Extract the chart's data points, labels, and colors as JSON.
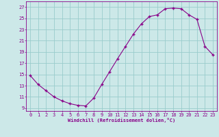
{
  "x": [
    0,
    1,
    2,
    3,
    4,
    5,
    6,
    7,
    8,
    9,
    10,
    11,
    12,
    13,
    14,
    15,
    16,
    17,
    18,
    19,
    20,
    21,
    22,
    23
  ],
  "y": [
    14.8,
    13.2,
    12.1,
    11.0,
    10.3,
    9.8,
    9.5,
    9.4,
    10.8,
    13.2,
    15.5,
    17.8,
    20.0,
    22.2,
    24.0,
    25.3,
    25.6,
    26.7,
    26.8,
    26.7,
    25.6,
    24.8,
    20.0,
    18.5
  ],
  "line_color": "#880088",
  "marker_color": "#880088",
  "bg_color": "#cce8e8",
  "grid_color": "#99cccc",
  "xlabel": "Windchill (Refroidissement éolien,°C)",
  "xlim": [
    -0.5,
    23.5
  ],
  "ylim": [
    8.5,
    28.0
  ],
  "xticks": [
    0,
    1,
    2,
    3,
    4,
    5,
    6,
    7,
    8,
    9,
    10,
    11,
    12,
    13,
    14,
    15,
    16,
    17,
    18,
    19,
    20,
    21,
    22,
    23
  ],
  "yticks": [
    9,
    11,
    13,
    15,
    17,
    19,
    21,
    23,
    25,
    27
  ],
  "font_color": "#880088",
  "label_fontsize": 5.0,
  "tick_fontsize": 5.0
}
